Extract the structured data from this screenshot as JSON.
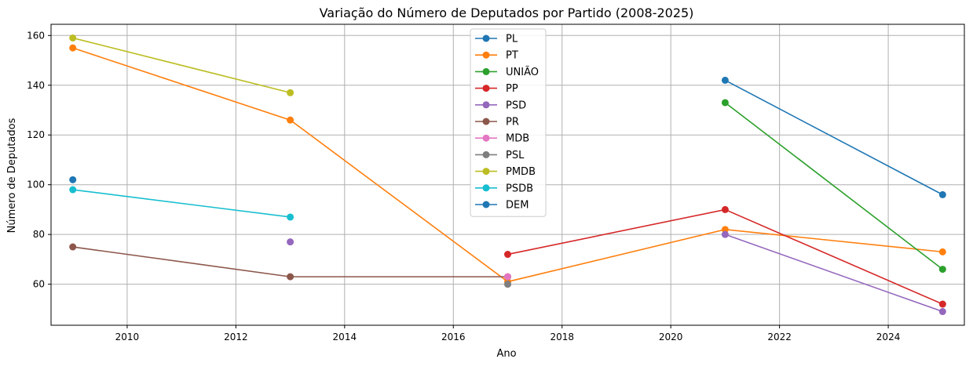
{
  "chart_data": {
    "type": "line",
    "title": "Variação do Número de Deputados por Partido (2008-2025)",
    "xlabel": "Ano",
    "ylabel": "Número de Deputados",
    "xlim": [
      2008.6,
      2025.4
    ],
    "ylim": [
      43.5,
      164.5
    ],
    "xticks": [
      2010,
      2012,
      2014,
      2016,
      2018,
      2020,
      2022,
      2024
    ],
    "yticks": [
      60,
      80,
      100,
      120,
      140,
      160
    ],
    "grid": true,
    "legend_position": "top-center",
    "series": [
      {
        "name": "PL",
        "color": "#1f77b4",
        "points": [
          [
            2009,
            null
          ],
          [
            2013,
            null
          ],
          [
            2017,
            null
          ],
          [
            2021,
            142
          ],
          [
            2025,
            96
          ]
        ]
      },
      {
        "name": "PT",
        "color": "#ff7f0e",
        "points": [
          [
            2009,
            155
          ],
          [
            2013,
            126
          ],
          [
            2017,
            61
          ],
          [
            2021,
            82
          ],
          [
            2025,
            73
          ]
        ]
      },
      {
        "name": "UNIÃO",
        "color": "#2ca02c",
        "points": [
          [
            2021,
            133
          ],
          [
            2025,
            66
          ]
        ]
      },
      {
        "name": "PP",
        "color": "#d62728",
        "points": [
          [
            2017,
            72
          ],
          [
            2021,
            90
          ],
          [
            2025,
            52
          ]
        ]
      },
      {
        "name": "PSD",
        "color": "#9467bd",
        "points": [
          [
            2013,
            77
          ],
          [
            2017,
            null
          ],
          [
            2021,
            80
          ],
          [
            2025,
            49
          ]
        ]
      },
      {
        "name": "PR",
        "color": "#8c564b",
        "points": [
          [
            2009,
            75
          ],
          [
            2013,
            63
          ],
          [
            2017,
            63
          ]
        ]
      },
      {
        "name": "MDB",
        "color": "#e377c2",
        "points": [
          [
            2017,
            63
          ]
        ]
      },
      {
        "name": "PSL",
        "color": "#7f7f7f",
        "points": [
          [
            2017,
            60
          ]
        ]
      },
      {
        "name": "PMDB",
        "color": "#bcbd22",
        "points": [
          [
            2009,
            159
          ],
          [
            2013,
            137
          ]
        ]
      },
      {
        "name": "PSDB",
        "color": "#17becf",
        "points": [
          [
            2009,
            98
          ],
          [
            2013,
            87
          ]
        ]
      },
      {
        "name": "DEM",
        "color": "#1f77b4",
        "points": [
          [
            2009,
            102
          ]
        ]
      }
    ]
  }
}
